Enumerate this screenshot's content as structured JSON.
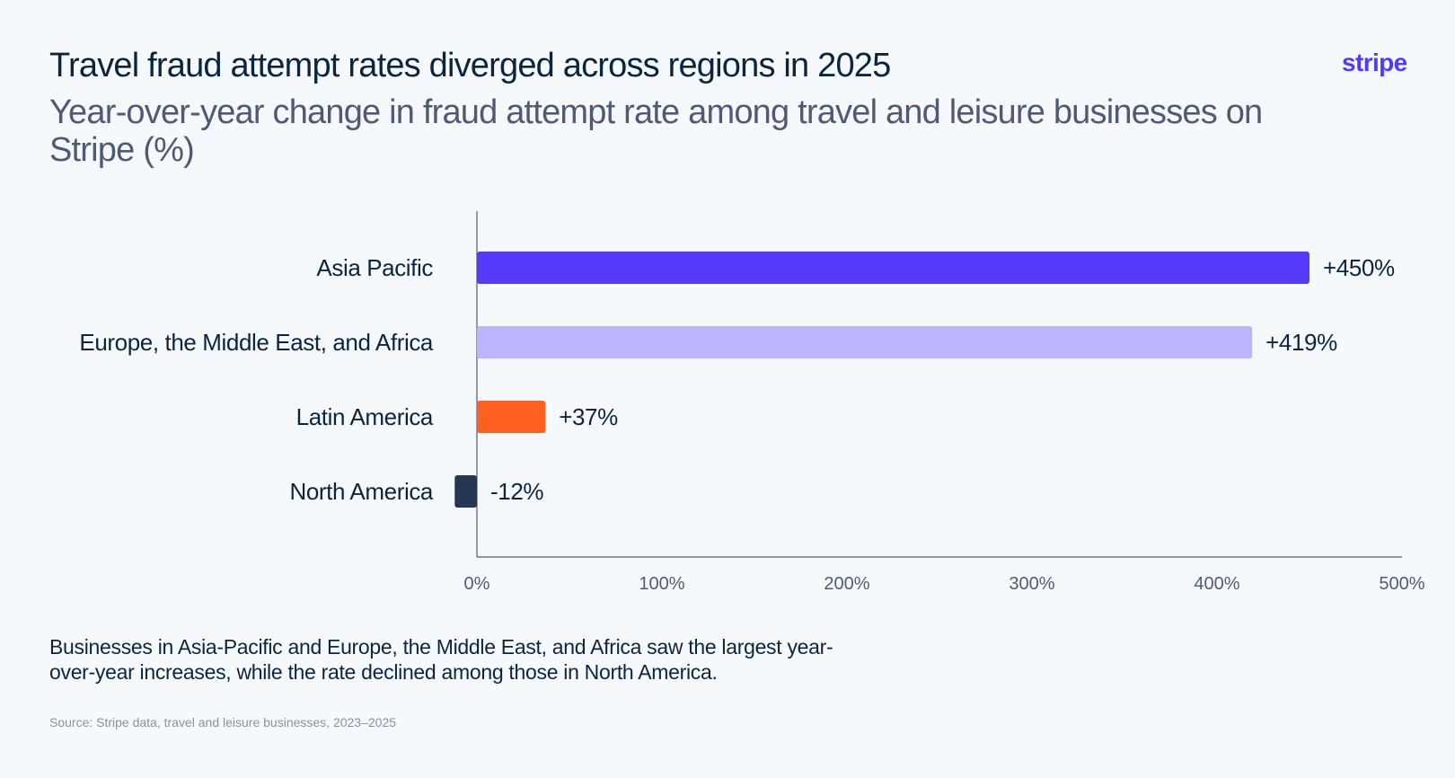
{
  "header": {
    "title": "Travel fraud attempt rates diverged across regions in 2025",
    "subtitle": "Year-over-year change in fraud attempt rate among travel and leisure businesses on Stripe (%)",
    "logo_text": "stripe"
  },
  "footer": {
    "caption": "Businesses in Asia-Pacific and Europe, the Middle East, and Africa saw the largest year-over-year increases, while the rate declined among those in North America.",
    "source": "Source: Stripe data, travel and leisure businesses, 2023–2025"
  },
  "colors": {
    "brand": "#533afd",
    "axis": "#4f5b76"
  },
  "chart_data": {
    "type": "bar",
    "orientation": "horizontal",
    "categories": [
      "Asia Pacific",
      "Europe, the Middle East, and Africa",
      "Latin America",
      "North America"
    ],
    "values": [
      450,
      419,
      37,
      -12
    ],
    "value_labels": [
      "+450%",
      "+419%",
      "+37%",
      "-12%"
    ],
    "bar_colors": [
      "#533afd",
      "#bab5fc",
      "#ff5f1f",
      "#243651"
    ],
    "x_ticks": [
      0,
      100,
      200,
      300,
      400,
      500
    ],
    "x_tick_labels": [
      "0%",
      "100%",
      "200%",
      "300%",
      "400%",
      "500%"
    ],
    "xlim": [
      0,
      500
    ],
    "grid": false,
    "legend": "none"
  }
}
